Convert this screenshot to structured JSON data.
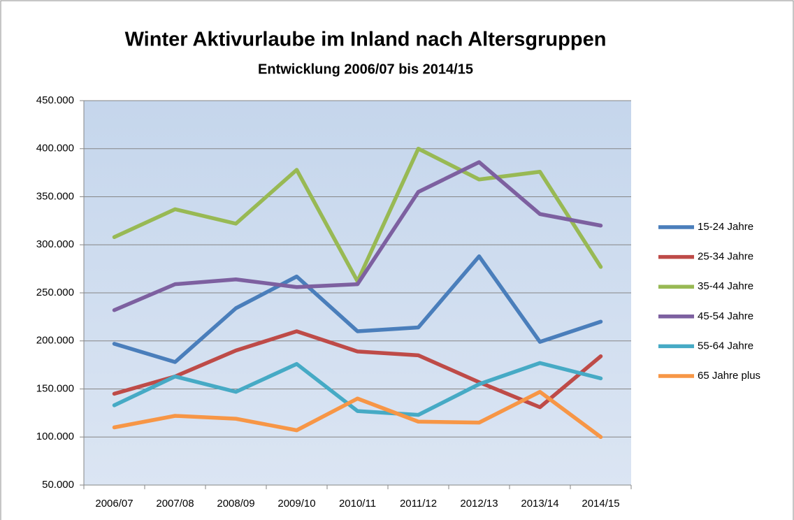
{
  "chart_data": {
    "type": "line",
    "title": "Winter Aktivurlaube im Inland nach Altersgruppen",
    "subtitle": "Entwicklung  2006/07 bis  2014/15",
    "categories": [
      "2006/07",
      "2007/08",
      "2008/09",
      "2009/10",
      "2010/11",
      "2011/12",
      "2012/13",
      "2013/14",
      "2014/15"
    ],
    "series": [
      {
        "name": "15-24 Jahre",
        "color": "#4a7ebb",
        "values": [
          197000,
          178000,
          234000,
          267000,
          210000,
          214000,
          288000,
          199000,
          220000
        ]
      },
      {
        "name": "25-34 Jahre",
        "color": "#be4b48",
        "values": [
          145000,
          163000,
          190000,
          210000,
          189000,
          185000,
          157000,
          131000,
          184000
        ]
      },
      {
        "name": "35-44 Jahre",
        "color": "#98b954",
        "values": [
          308000,
          337000,
          322000,
          378000,
          262000,
          400000,
          368000,
          376000,
          277000
        ]
      },
      {
        "name": "45-54 Jahre",
        "color": "#7d60a0",
        "values": [
          232000,
          259000,
          264000,
          256000,
          259000,
          355000,
          386000,
          332000,
          320000
        ]
      },
      {
        "name": "55-64 Jahre",
        "color": "#46aac5",
        "values": [
          133000,
          163000,
          147000,
          176000,
          127000,
          123000,
          155000,
          177000,
          161000
        ]
      },
      {
        "name": "65 Jahre plus",
        "color": "#f79646",
        "values": [
          110000,
          122000,
          119000,
          107000,
          140000,
          116000,
          115000,
          147000,
          100000
        ]
      }
    ],
    "ylim": [
      50000,
      450000
    ],
    "yticks": [
      {
        "value": 50000,
        "label": "50.000"
      },
      {
        "value": 100000,
        "label": "100.000"
      },
      {
        "value": 150000,
        "label": "150.000"
      },
      {
        "value": 200000,
        "label": "200.000"
      },
      {
        "value": 250000,
        "label": "250.000"
      },
      {
        "value": 300000,
        "label": "300.000"
      },
      {
        "value": 350000,
        "label": "350.000"
      },
      {
        "value": 400000,
        "label": "400.000"
      },
      {
        "value": 450000,
        "label": "450.000"
      }
    ],
    "grid": true,
    "legend": "right"
  }
}
